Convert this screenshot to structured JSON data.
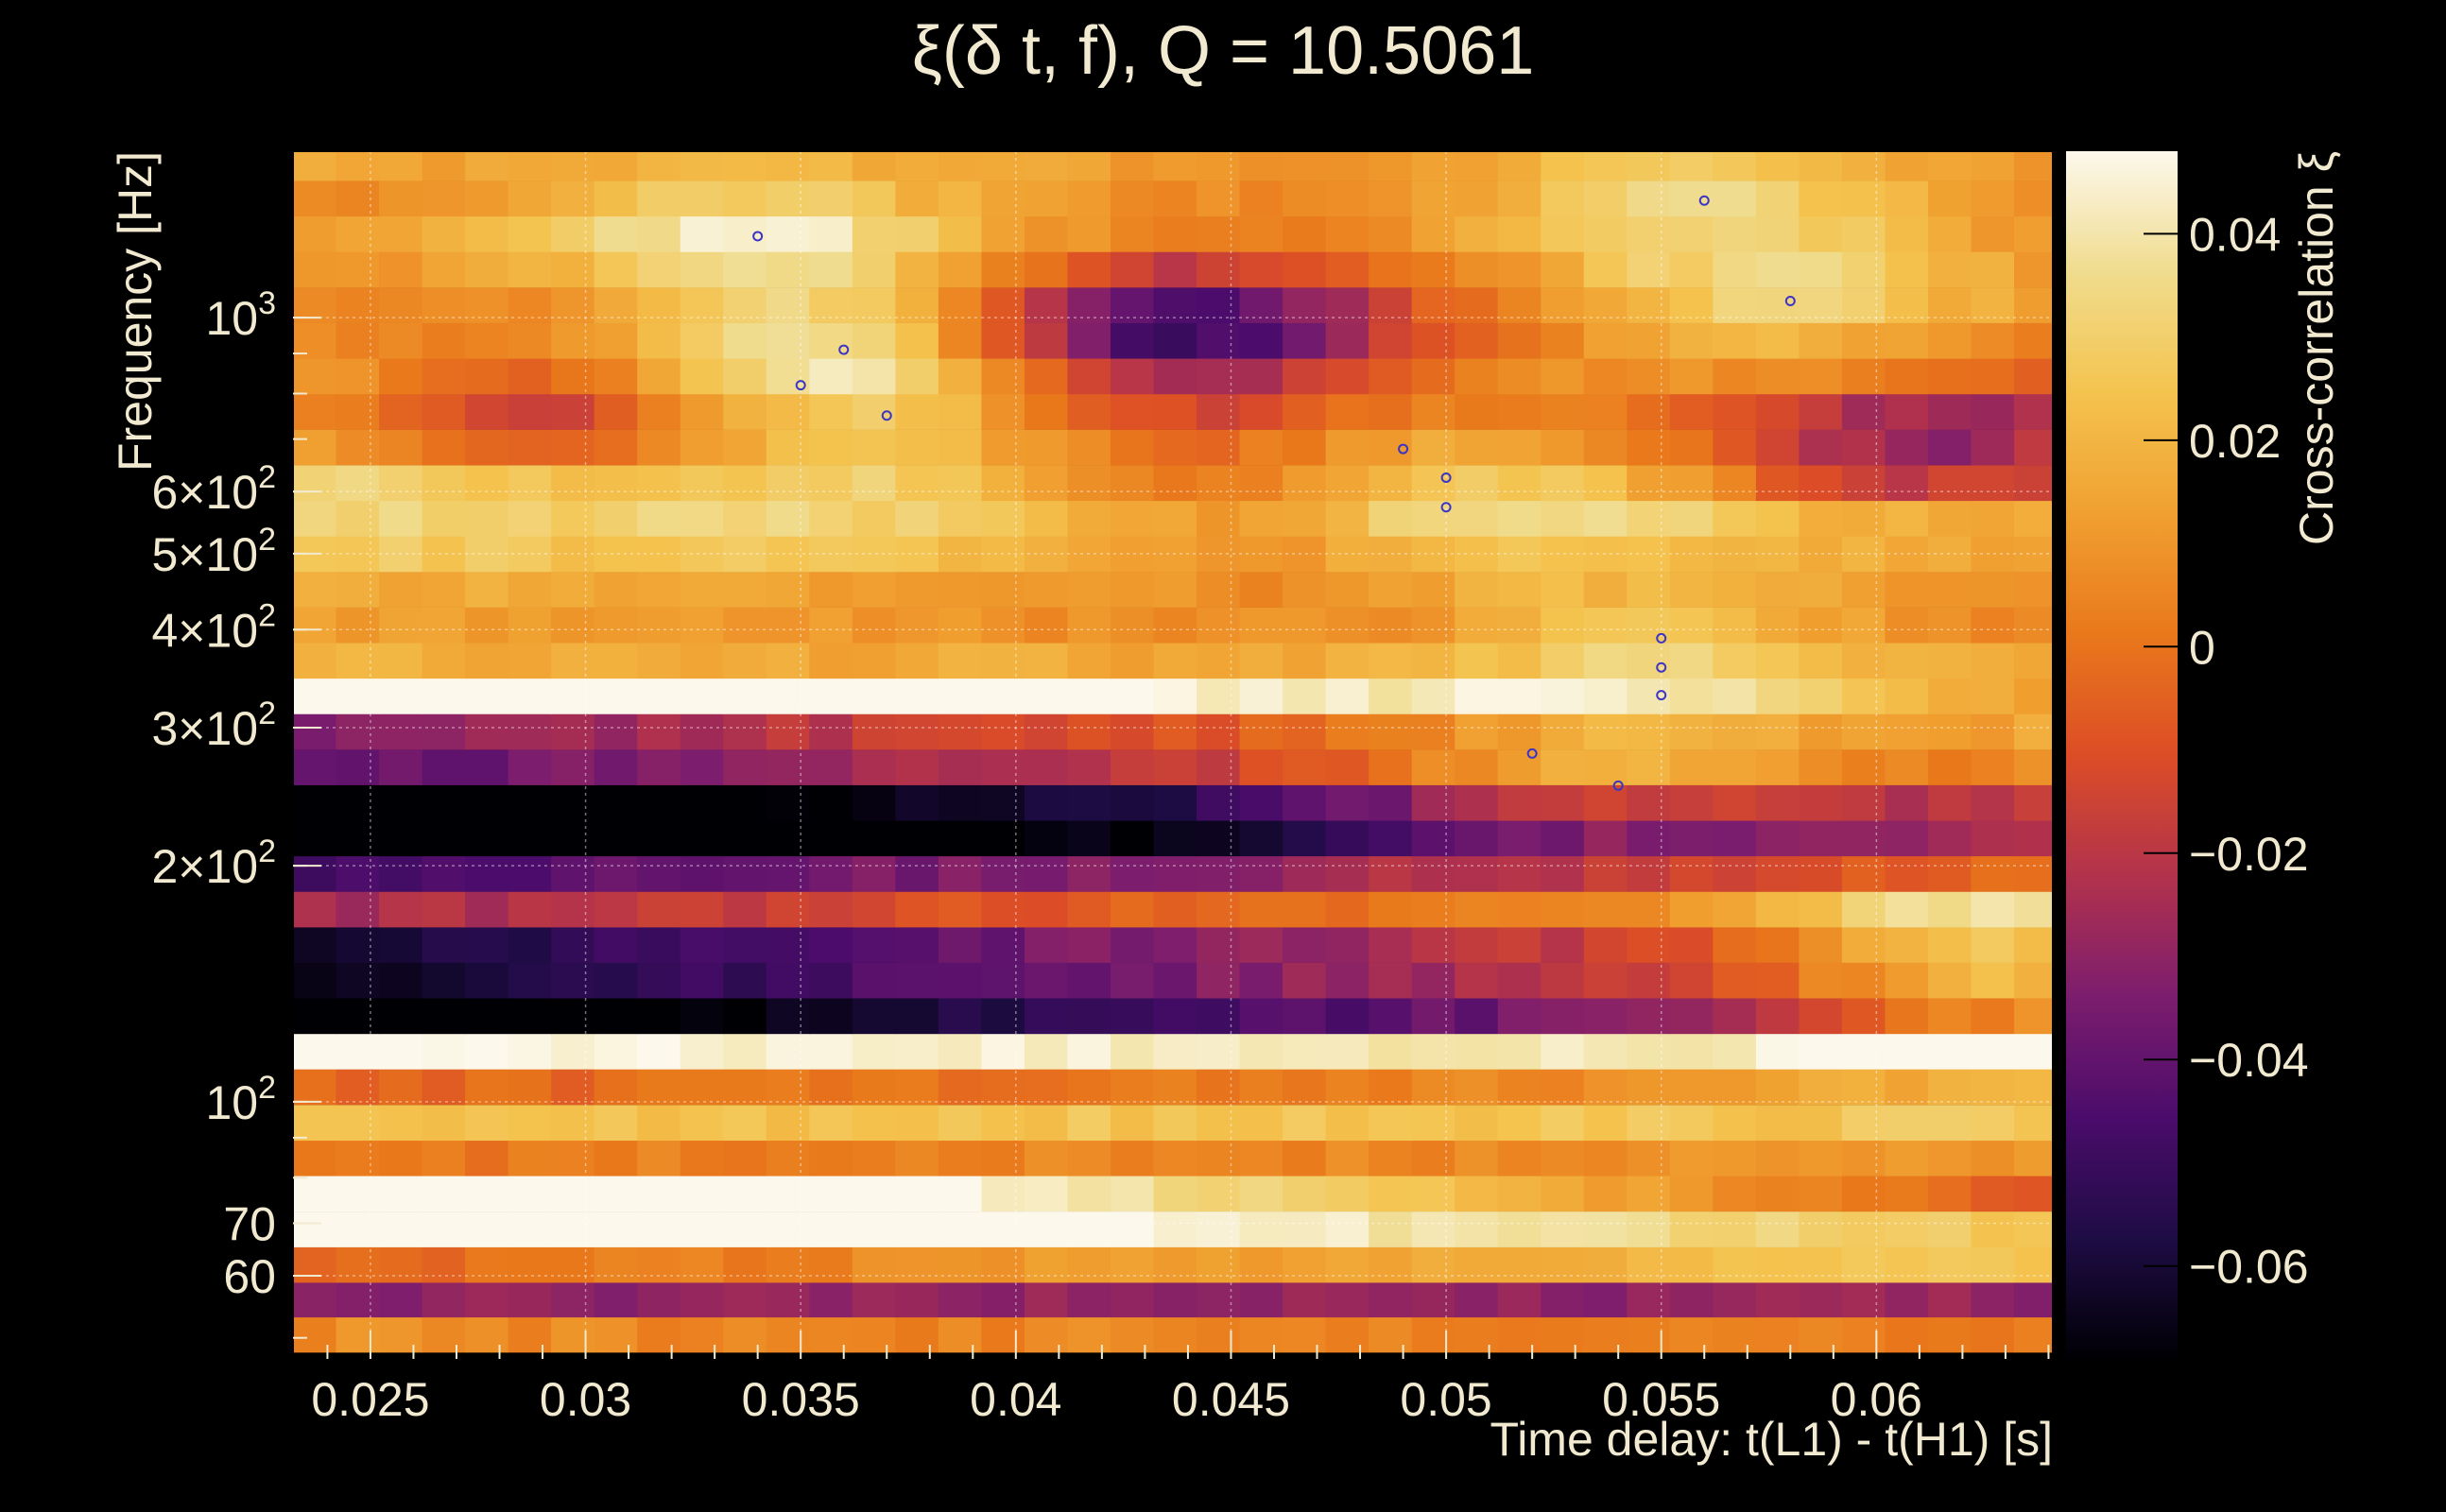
{
  "chart_data": {
    "type": "heatmap",
    "title": "ξ(δ t, f), Q = 10.5061",
    "xlabel": "Time delay: t(L1) - t(H1) [s]",
    "ylabel": "Frequency [Hz]",
    "colorbar_label": "Cross-correlation ξ",
    "xlim": [
      0.0232,
      0.0641
    ],
    "ylim": [
      47,
      1630
    ],
    "y_scale": "log",
    "x_bin_width": 0.001,
    "x_bin_start": 0.0232,
    "x_ticks": [
      {
        "value": 0.025,
        "label": "0.025"
      },
      {
        "value": 0.03,
        "label": "0.03"
      },
      {
        "value": 0.035,
        "label": "0.035"
      },
      {
        "value": 0.04,
        "label": "0.04"
      },
      {
        "value": 0.045,
        "label": "0.045"
      },
      {
        "value": 0.05,
        "label": "0.05"
      },
      {
        "value": 0.055,
        "label": "0.055"
      },
      {
        "value": 0.06,
        "label": "0.06"
      }
    ],
    "y_ticks": [
      {
        "value": 60,
        "label": "60",
        "exp": ""
      },
      {
        "value": 70,
        "label": "70",
        "exp": ""
      },
      {
        "value": 100,
        "label": "10",
        "exp": "2"
      },
      {
        "value": 200,
        "label": "2×10",
        "exp": "2"
      },
      {
        "value": 300,
        "label": "3×10",
        "exp": "2"
      },
      {
        "value": 400,
        "label": "4×10",
        "exp": "2"
      },
      {
        "value": 500,
        "label": "5×10",
        "exp": "2"
      },
      {
        "value": 600,
        "label": "6×10",
        "exp": "2"
      },
      {
        "value": 1000,
        "label": "10",
        "exp": "3"
      }
    ],
    "colorbar": {
      "range": [
        -0.069,
        0.048
      ],
      "ticks": [
        {
          "value": 0.04,
          "label": "0.04"
        },
        {
          "value": 0.02,
          "label": "0.02"
        },
        {
          "value": 0,
          "label": "0"
        },
        {
          "value": -0.02,
          "label": "−0.02"
        },
        {
          "value": -0.04,
          "label": "−0.04"
        },
        {
          "value": -0.06,
          "label": "−0.06"
        }
      ]
    },
    "color_scale": [
      "#000004",
      "#1e0c45",
      "#4b0c6b",
      "#7c1d6e",
      "#b2324c",
      "#dc4d26",
      "#e9781b",
      "#f0a030",
      "#f4c34e",
      "#f0dc8e",
      "#fcf8ec"
    ],
    "frequency_bands": [
      {
        "f": 50.5,
        "base": 0.005,
        "slope": -0.1
      },
      {
        "f": 56.0,
        "base": -0.03,
        "slope": 0.05
      },
      {
        "f": 62.0,
        "base": 0.012,
        "slope": 0.8
      },
      {
        "f": 68.8,
        "base": 0.046,
        "slope": -1.0
      },
      {
        "f": 76.4,
        "base": 0.036,
        "slope": -2.2
      },
      {
        "f": 84.8,
        "base": 0.005,
        "slope": 0.2
      },
      {
        "f": 94.1,
        "base": 0.025,
        "slope": 0.0
      },
      {
        "f": 104.5,
        "base": 0.003,
        "slope": 0.4
      },
      {
        "f": 116.0,
        "base": 0.043,
        "slope": -0.3
      },
      {
        "f": 128.7,
        "base": -0.05,
        "slope": 1.6
      },
      {
        "f": 142.9,
        "base": -0.035,
        "slope": 1.5
      },
      {
        "f": 158.6,
        "base": -0.032,
        "slope": 1.5
      },
      {
        "f": 176.0,
        "base": -0.005,
        "slope": 1.1
      },
      {
        "f": 195.4,
        "base": -0.03,
        "slope": 0.8
      },
      {
        "f": 216.9,
        "base": -0.065,
        "slope": 2.0
      },
      {
        "f": 240.7,
        "base": -0.055,
        "slope": 1.8
      },
      {
        "f": 267.2,
        "base": -0.018,
        "slope": 1.2
      },
      {
        "f": 296.6,
        "base": -0.01,
        "slope": 1.2
      },
      {
        "f": 329.2,
        "base": 0.046,
        "slope": -1.5
      },
      {
        "f": 365.4,
        "base": 0.015,
        "slope": -0.1
      },
      {
        "f": 405.6,
        "base": 0.008,
        "slope": -0.2
      },
      {
        "f": 450.2,
        "base": 0.012,
        "slope": -0.3
      },
      {
        "f": 499.7,
        "base": 0.022,
        "slope": -0.3
      },
      {
        "f": 554.7,
        "base": 0.03,
        "slope": -0.2
      },
      {
        "f": 615.7,
        "base": 0.02,
        "slope": -0.8
      },
      {
        "f": 683.5,
        "base": 0.008,
        "slope": -0.4
      },
      {
        "f": 758.7,
        "base": 0.002,
        "slope": -0.4
      },
      {
        "f": 842.2,
        "base": 0.008,
        "slope": -0.3
      },
      {
        "f": 934.9,
        "base": 0.005,
        "slope": -0.2
      },
      {
        "f": 1037.7,
        "base": 0.005,
        "slope": 0.0
      },
      {
        "f": 1151.9,
        "base": 0.008,
        "slope": 0.0
      },
      {
        "f": 1278.7,
        "base": 0.01,
        "slope": -0.2
      },
      {
        "f": 1419.4,
        "base": 0.008,
        "slope": 0.0
      },
      {
        "f": 1575.6,
        "base": 0.012,
        "slope": -0.1
      }
    ],
    "blobs": [
      {
        "t": 0.034,
        "f": 1270,
        "amp": 0.03
      },
      {
        "t": 0.0355,
        "f": 930,
        "amp": 0.028
      },
      {
        "t": 0.0365,
        "f": 770,
        "amp": 0.022
      },
      {
        "t": 0.05,
        "f": 620,
        "amp": 0.022
      },
      {
        "t": 0.056,
        "f": 1400,
        "amp": 0.025
      },
      {
        "t": 0.058,
        "f": 1030,
        "amp": 0.025
      },
      {
        "t": 0.055,
        "f": 395,
        "amp": 0.02
      },
      {
        "t": 0.053,
        "f": 255,
        "amp": 0.025
      },
      {
        "t": 0.0625,
        "f": 165,
        "amp": 0.025
      },
      {
        "t": 0.0625,
        "f": 125,
        "amp": 0.02
      },
      {
        "t": 0.0445,
        "f": 1000,
        "amp": -0.035
      },
      {
        "t": 0.0455,
        "f": 580,
        "amp": -0.025
      },
      {
        "t": 0.061,
        "f": 680,
        "amp": -0.03
      },
      {
        "t": 0.0295,
        "f": 760,
        "amp": -0.025
      },
      {
        "t": 0.0425,
        "f": 905,
        "amp": -0.028
      }
    ],
    "peak_markers": [
      {
        "t": 0.034,
        "f": 1270
      },
      {
        "t": 0.036,
        "f": 910
      },
      {
        "t": 0.035,
        "f": 820
      },
      {
        "t": 0.037,
        "f": 750
      },
      {
        "t": 0.056,
        "f": 1410
      },
      {
        "t": 0.058,
        "f": 1050
      },
      {
        "t": 0.049,
        "f": 680
      },
      {
        "t": 0.05,
        "f": 625
      },
      {
        "t": 0.05,
        "f": 573
      },
      {
        "t": 0.055,
        "f": 390
      },
      {
        "t": 0.055,
        "f": 358
      },
      {
        "t": 0.055,
        "f": 330
      },
      {
        "t": 0.052,
        "f": 278
      },
      {
        "t": 0.054,
        "f": 253
      }
    ],
    "grid": true,
    "legend": "colorbar-right"
  }
}
